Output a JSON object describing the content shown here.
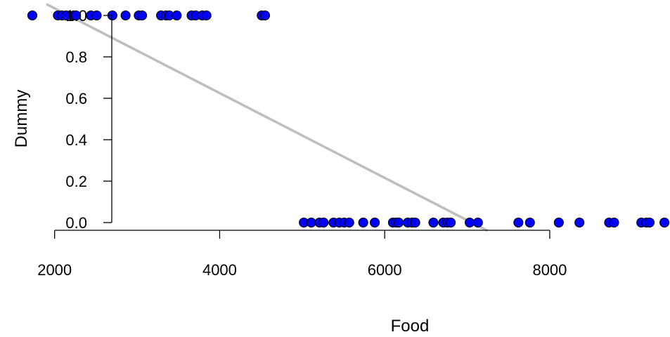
{
  "chart_data": {
    "type": "scatter",
    "title": "",
    "xlabel": "Food",
    "ylabel": "Dummy",
    "xlim": [
      1500,
      9500
    ],
    "ylim": [
      -0.02,
      1.01
    ],
    "x_ticks": [
      2000,
      4000,
      6000,
      8000
    ],
    "x_tick_labels": [
      "2000",
      "4000",
      "6000",
      "8000"
    ],
    "y_ticks": [
      0.0,
      0.2,
      0.4,
      0.6,
      0.8,
      1.0
    ],
    "y_tick_labels": [
      "0.0",
      "0.2",
      "0.4",
      "0.6",
      "0.8",
      "1.0"
    ],
    "grid": false,
    "point_color": "#0000ff",
    "point_edge_color": "#000000",
    "line_color": "#bebebe",
    "series": [
      {
        "points": [
          [
            1730,
            1
          ],
          [
            2040,
            1
          ],
          [
            2090,
            1
          ],
          [
            2140,
            1
          ],
          [
            2230,
            1
          ],
          [
            2260,
            1
          ],
          [
            2440,
            1
          ],
          [
            2510,
            1
          ],
          [
            2700,
            1
          ],
          [
            2860,
            1
          ],
          [
            3020,
            1
          ],
          [
            3060,
            1
          ],
          [
            3290,
            1
          ],
          [
            3350,
            1
          ],
          [
            3390,
            1
          ],
          [
            3480,
            1
          ],
          [
            3660,
            1
          ],
          [
            3710,
            1
          ],
          [
            3790,
            1
          ],
          [
            3840,
            1
          ],
          [
            4510,
            1
          ],
          [
            4550,
            1
          ],
          [
            5020,
            0
          ],
          [
            5110,
            0
          ],
          [
            5210,
            0
          ],
          [
            5260,
            0
          ],
          [
            5380,
            0
          ],
          [
            5450,
            0
          ],
          [
            5510,
            0
          ],
          [
            5570,
            0
          ],
          [
            5740,
            0
          ],
          [
            5880,
            0
          ],
          [
            6100,
            0
          ],
          [
            6140,
            0
          ],
          [
            6170,
            0
          ],
          [
            6280,
            0
          ],
          [
            6330,
            0
          ],
          [
            6370,
            0
          ],
          [
            6590,
            0
          ],
          [
            6710,
            0
          ],
          [
            6760,
            0
          ],
          [
            6800,
            0
          ],
          [
            7030,
            0
          ],
          [
            7130,
            0
          ],
          [
            7620,
            0
          ],
          [
            7760,
            0
          ],
          [
            8110,
            0
          ],
          [
            8360,
            0
          ],
          [
            8720,
            0
          ],
          [
            8780,
            0
          ],
          [
            9110,
            0
          ],
          [
            9170,
            0
          ],
          [
            9210,
            0
          ],
          [
            9390,
            0
          ]
        ]
      }
    ],
    "fit_line": {
      "type": "linear",
      "x": [
        1900,
        7250
      ],
      "y": [
        1.055,
        -0.04
      ]
    }
  }
}
